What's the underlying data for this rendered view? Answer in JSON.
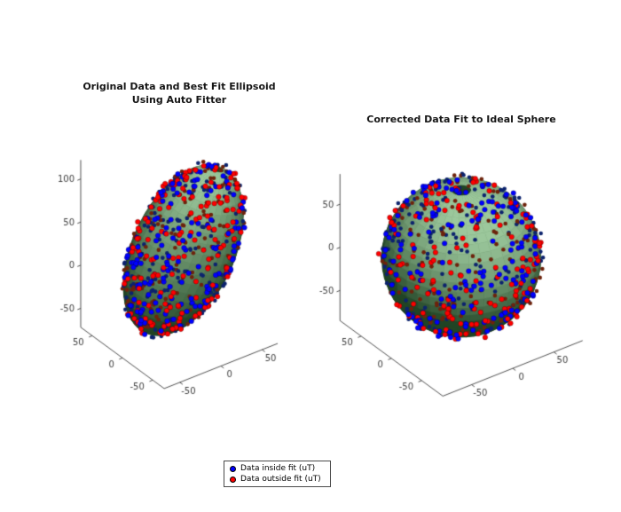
{
  "colors": {
    "background": "#ffffff",
    "axis": "#3f3f3f",
    "tick_label": "#3f3f3f"
  },
  "legend": {
    "items": [
      {
        "label": "Data inside fit (uT)",
        "color": "#0000ff"
      },
      {
        "label": "Data outside fit (uT)",
        "color": "#ff0000"
      }
    ]
  },
  "chart_data": [
    {
      "type": "scatter",
      "plot_kind": "3d scatter of magnetometer samples over best-fit ellipsoid surface",
      "title": "Original Data and Best Fit Ellipsoid Using Auto Fitter",
      "title_lines": [
        "Original Data and Best Fit Ellipsoid",
        "Using Auto Fitter"
      ],
      "xlabel": "",
      "ylabel": "",
      "zlabel": "",
      "x_ticks": [
        -50,
        0,
        50
      ],
      "y_ticks": [
        -50,
        0,
        50
      ],
      "z_ticks": [
        -50,
        0,
        50,
        100
      ],
      "xlim": [
        -69,
        69
      ],
      "ylim": [
        -69,
        69
      ],
      "zlim": [
        -72,
        122
      ],
      "grid": false,
      "surface": {
        "shape": "ellipsoid",
        "center": [
          5,
          0,
          25
        ],
        "radii": [
          55,
          46,
          95
        ],
        "tilt_deg_y": 20,
        "tilt_deg_x": 8,
        "color_dark": "#0d2e12",
        "color_light": "#9cc89c"
      },
      "points": {
        "count": 620,
        "jitter": 0.05,
        "series": [
          {
            "name": "Data inside fit (uT)",
            "color": "#0000ff"
          },
          {
            "name": "Data outside fit (uT)",
            "color": "#ff0000"
          }
        ]
      }
    },
    {
      "type": "scatter",
      "plot_kind": "3d scatter of corrected samples over ideal sphere surface",
      "title": "Corrected Data Fit to Ideal Sphere",
      "xlabel": "",
      "ylabel": "",
      "zlabel": "",
      "x_ticks": [
        -50,
        0,
        50
      ],
      "y_ticks": [
        -50,
        0,
        50
      ],
      "z_ticks": [
        -50,
        0,
        50
      ],
      "xlim": [
        -85,
        85
      ],
      "ylim": [
        -85,
        85
      ],
      "zlim": [
        -85,
        85
      ],
      "grid": false,
      "surface": {
        "shape": "sphere",
        "center": [
          0,
          0,
          0
        ],
        "radii": [
          78,
          78,
          78
        ],
        "tilt_deg_y": 0,
        "tilt_deg_x": 0,
        "color_dark": "#0d2e12",
        "color_light": "#9cc89c"
      },
      "points": {
        "count": 620,
        "jitter": 0.05,
        "series": [
          {
            "name": "Data inside fit (uT)",
            "color": "#0000ff"
          },
          {
            "name": "Data outside fit (uT)",
            "color": "#ff0000"
          }
        ]
      }
    }
  ]
}
